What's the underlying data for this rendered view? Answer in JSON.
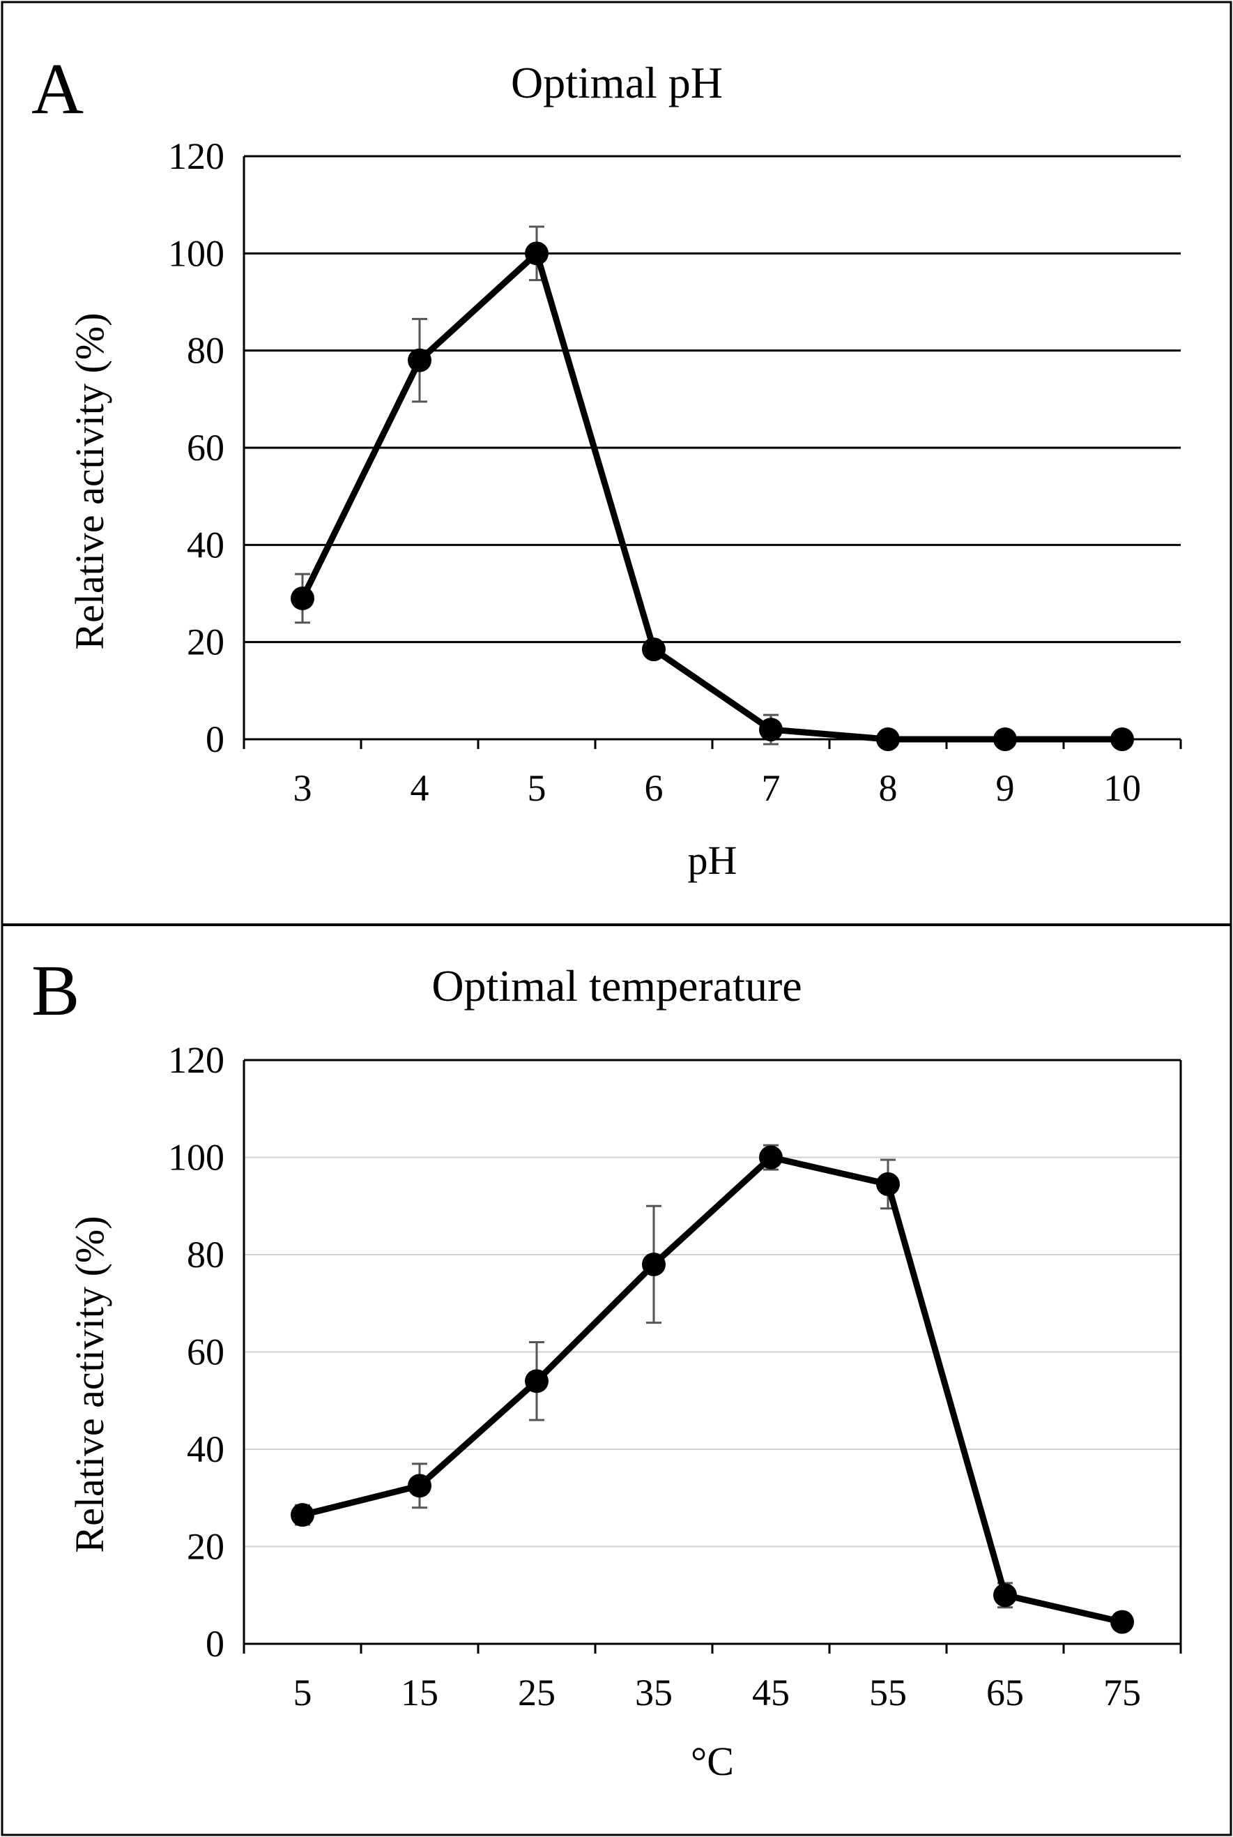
{
  "chart_data": [
    {
      "panel": "A",
      "type": "line",
      "title": "Optimal pH",
      "xlabel": "pH",
      "ylabel": "Relative activity (%)",
      "categories": [
        "3",
        "4",
        "5",
        "6",
        "7",
        "8",
        "9",
        "10"
      ],
      "y_ticks": [
        "0",
        "20",
        "40",
        "60",
        "80",
        "100",
        "120"
      ],
      "ylim": [
        0,
        120
      ],
      "grid": "major horizontal",
      "grid_color": "#000000",
      "series": [
        {
          "values": [
            29,
            78,
            100,
            18.5,
            2,
            0,
            0,
            0
          ],
          "error": [
            5,
            8.5,
            5.5,
            0,
            3,
            0,
            0,
            0
          ]
        }
      ]
    },
    {
      "panel": "B",
      "type": "line",
      "title": "Optimal temperature",
      "xlabel": "°C",
      "ylabel": "Relative activity (%)",
      "categories": [
        "5",
        "15",
        "25",
        "35",
        "45",
        "55",
        "65",
        "75"
      ],
      "y_ticks": [
        "0",
        "20",
        "40",
        "60",
        "80",
        "100",
        "120"
      ],
      "ylim": [
        0,
        120
      ],
      "grid": "major horizontal",
      "grid_color": "#d0d0d0",
      "series": [
        {
          "values": [
            26.5,
            32.5,
            54,
            78,
            100,
            94.5,
            10,
            4.5
          ],
          "error": [
            2,
            4.5,
            8,
            12,
            2.5,
            5,
            2.5,
            1
          ]
        }
      ]
    }
  ]
}
